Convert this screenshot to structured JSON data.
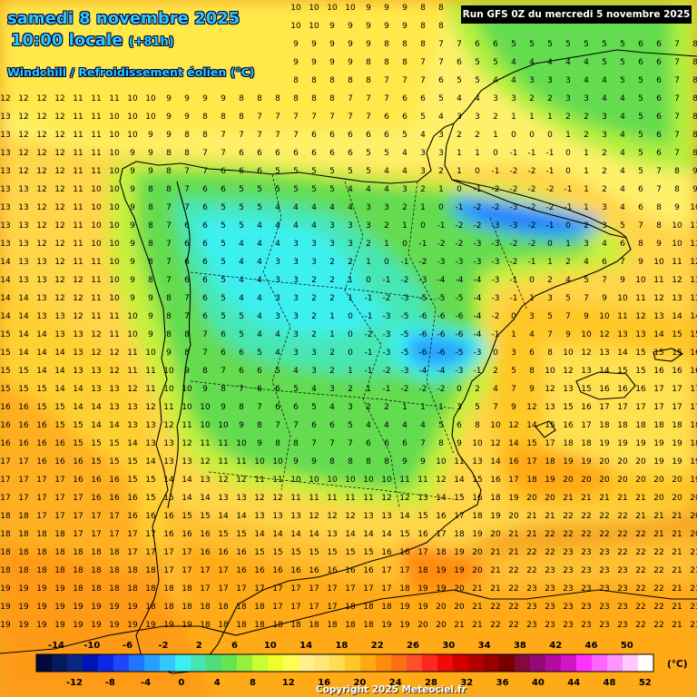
{
  "header": {
    "date": "samedi 8 novembre 2025",
    "time": "10:00 locale",
    "lead": "(+81h)",
    "parameter": "Windchill / Refroidissement éolien (°C)"
  },
  "run_info": "Run GFS 0Z du mercredi 5 novembre 2025",
  "copyright": "Copyright 2025 Meteociel.fr",
  "legend": {
    "unit": "(°C)",
    "top_labels": [
      "-14",
      "-10",
      "-6",
      "-2",
      "2",
      "6",
      "10",
      "14",
      "18",
      "22",
      "26",
      "30",
      "34",
      "38",
      "42",
      "46",
      "50"
    ],
    "bottom_labels": [
      "-12",
      "-8",
      "-4",
      "0",
      "4",
      "8",
      "12",
      "16",
      "20",
      "24",
      "28",
      "32",
      "36",
      "40",
      "44",
      "48",
      "52"
    ],
    "colors": [
      "#000a3c",
      "#05195f",
      "#0a2882",
      "#0014b4",
      "#0a28e6",
      "#1e46ff",
      "#1e78ff",
      "#28a0ff",
      "#32c8ff",
      "#3cf0f0",
      "#46e6b4",
      "#50dc78",
      "#64e650",
      "#96f03c",
      "#c8ff32",
      "#f0ff28",
      "#ffff50",
      "#fff08c",
      "#ffe678",
      "#ffdc50",
      "#ffc828",
      "#ffaa14",
      "#ff8c0a",
      "#ff6e14",
      "#ff5028",
      "#ff281e",
      "#f00a0a",
      "#d20000",
      "#b40000",
      "#960000",
      "#780000",
      "#820a3c",
      "#960a78",
      "#b40aa0",
      "#d214c8",
      "#ff32ff",
      "#ff64ff",
      "#ff96ff",
      "#ffc8ff",
      "#ffffff"
    ]
  }
}
